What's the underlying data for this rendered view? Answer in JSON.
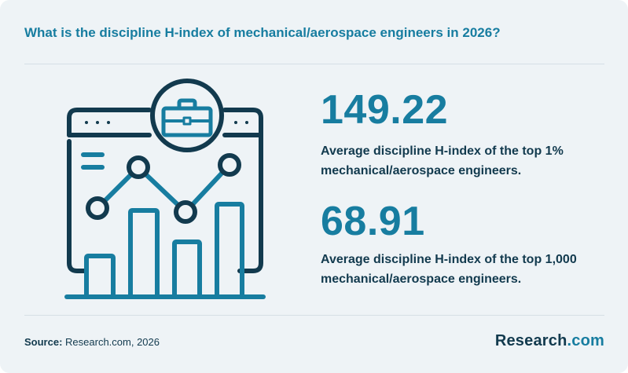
{
  "title": "What is the discipline H-index of mechanical/aerospace engineers in 2026?",
  "stats": [
    {
      "value": "149.22",
      "description": "Average discipline H-index of the top 1% mechanical/aerospace engineers."
    },
    {
      "value": "68.91",
      "description": "Average discipline H-index of the top 1,000 mechanical/aerospace engineers."
    }
  ],
  "source": {
    "label": "Source:",
    "text": "Research.com, 2026"
  },
  "logo": {
    "name": "Research",
    "suffix": ".com"
  },
  "colors": {
    "accent": "#177da0",
    "dark": "#123a4e",
    "background": "#eef3f6"
  },
  "illustration_icons": [
    "browser-window-icon",
    "briefcase-icon",
    "line-chart-icon",
    "bar-chart-icon"
  ]
}
